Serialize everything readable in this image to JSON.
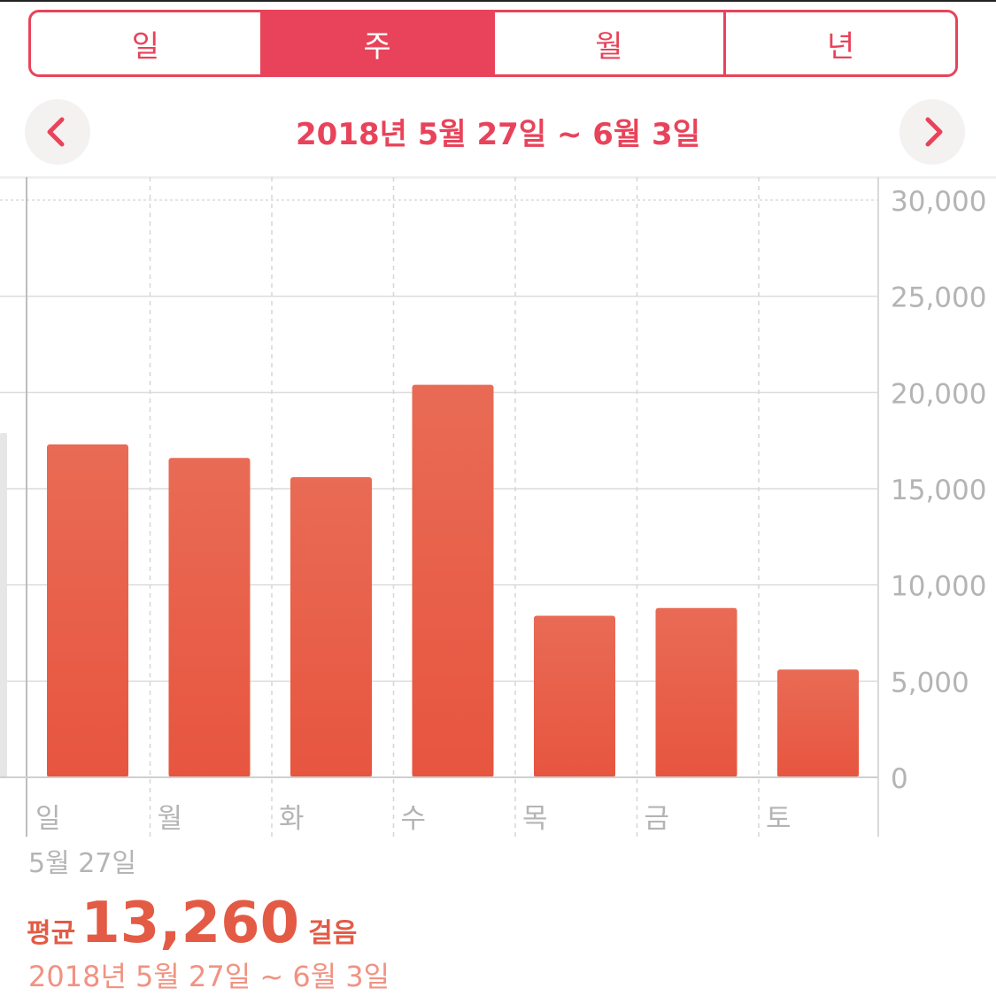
{
  "segments": {
    "items": [
      {
        "label": "일",
        "active": false
      },
      {
        "label": "주",
        "active": true
      },
      {
        "label": "월",
        "active": false
      },
      {
        "label": "년",
        "active": false
      }
    ]
  },
  "date_nav": {
    "title": "2018년 5월 27일 ~ 6월 3일",
    "prev_icon": "chevron-left-icon",
    "next_icon": "chevron-right-icon"
  },
  "chart_data": {
    "type": "bar",
    "categories": [
      "일",
      "월",
      "화",
      "수",
      "목",
      "금",
      "토"
    ],
    "values": [
      17300,
      16600,
      15600,
      20400,
      8400,
      8800,
      5600
    ],
    "ylim": [
      0,
      30000
    ],
    "yticks": [
      "30,000",
      "25,000",
      "20,000",
      "15,000",
      "10,000",
      "5,000",
      "0"
    ],
    "ytick_values": [
      30000,
      25000,
      20000,
      15000,
      10000,
      5000,
      0
    ],
    "grid": true,
    "y_axis_side": "right",
    "bar_color_top": "#e96b55",
    "bar_color_bottom": "#e7553f",
    "partial_previous_bar_value": 17900
  },
  "summary": {
    "selected_date": "5월 27일",
    "avg_label": "평균",
    "avg_value": "13,260",
    "avg_unit": "걸음",
    "range": "2018년 5월 27일 ~ 6월 3일"
  },
  "colors": {
    "accent": "#e8435a",
    "bar": "#e96b55",
    "summary": "#e35b45",
    "summary_light": "#f19282"
  }
}
